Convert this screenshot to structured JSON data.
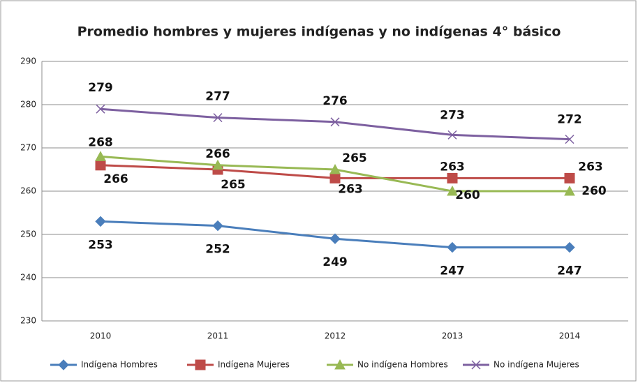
{
  "chart_data": {
    "type": "line",
    "title": "Promedio hombres y mujeres indígenas y no indígenas 4° básico",
    "categories": [
      "2010",
      "2011",
      "2012",
      "2013",
      "2014"
    ],
    "series": [
      {
        "name": "Indígena Hombres",
        "color": "#4a7ebb",
        "marker": "diamond",
        "values": [
          253,
          252,
          249,
          247,
          247
        ]
      },
      {
        "name": "Indígena Mujeres",
        "color": "#be4b48",
        "marker": "square",
        "values": [
          266,
          265,
          263,
          263,
          263
        ]
      },
      {
        "name": "No indígena Hombres",
        "color": "#98b954",
        "marker": "triangle",
        "values": [
          268,
          266,
          265,
          260,
          260
        ]
      },
      {
        "name": "No indígena Mujeres",
        "color": "#7d60a0",
        "marker": "x",
        "values": [
          279,
          277,
          276,
          273,
          272
        ]
      }
    ],
    "ylim": [
      230,
      290
    ],
    "yticks": [
      230,
      240,
      250,
      260,
      270,
      280,
      290
    ],
    "grid": true,
    "legend": "bottom"
  }
}
